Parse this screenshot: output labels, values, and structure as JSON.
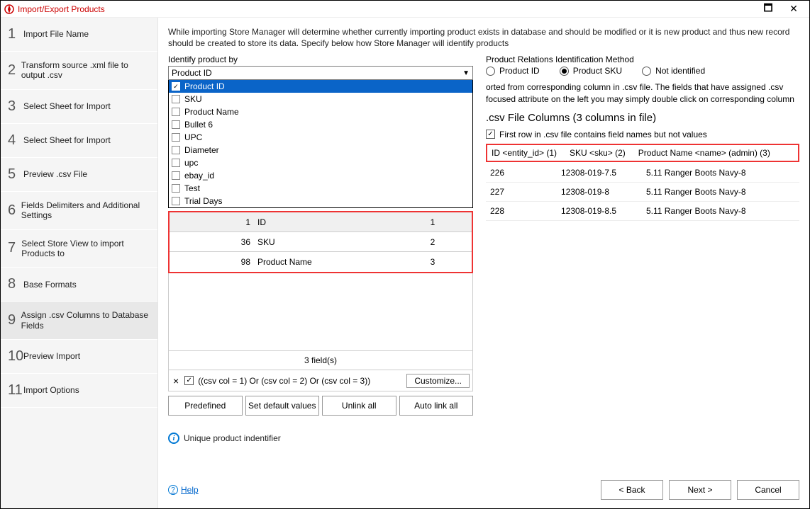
{
  "window": {
    "title": "Import/Export Products"
  },
  "steps": [
    {
      "n": "1",
      "label": "Import File Name"
    },
    {
      "n": "2",
      "label": "Transform source .xml file to output .csv"
    },
    {
      "n": "3",
      "label": "Select Sheet for Import"
    },
    {
      "n": "4",
      "label": "Select Sheet for Import"
    },
    {
      "n": "5",
      "label": "Preview .csv File"
    },
    {
      "n": "6",
      "label": "Fields Delimiters and Additional Settings"
    },
    {
      "n": "7",
      "label": "Select Store View to import Products to"
    },
    {
      "n": "8",
      "label": "Base Formats"
    },
    {
      "n": "9",
      "label": "Assign .csv Columns to Database Fields"
    },
    {
      "n": "10",
      "label": "Preview Import"
    },
    {
      "n": "11",
      "label": "Import Options"
    }
  ],
  "active_step_index": 8,
  "intro": "While importing Store Manager will determine whether currently importing product exists in database and should be modified or it is new product and thus new record should be created to store its data. Specify below how Store Manager will identify products",
  "identify": {
    "label": "Identify product by",
    "selected": "Product ID",
    "options": [
      "Product ID",
      "SKU",
      "Product Name",
      "Bullet 6",
      "UPC",
      "Diameter",
      "upc",
      "ebay_id",
      "Test",
      "Trial Days"
    ],
    "checked_index": 0
  },
  "fields": {
    "rows": [
      {
        "n": "1",
        "name": "ID",
        "col": "1"
      },
      {
        "n": "36",
        "name": "SKU",
        "col": "2"
      },
      {
        "n": "98",
        "name": "Product Name",
        "col": "3"
      }
    ],
    "count_label": "3 field(s)",
    "filter_expr": "((csv col = 1) Or (csv col = 2) Or (csv col = 3))",
    "customize_btn": "Customize..."
  },
  "btns": {
    "predefined": "Predefined",
    "setdef": "Set default values",
    "unlink": "Unlink all",
    "autolink": "Auto link all"
  },
  "info": "Unique product indentifier",
  "relations": {
    "label": "Product Relations Identification Method",
    "options": [
      "Product ID",
      "Product SKU",
      "Not identified"
    ],
    "selected_index": 1
  },
  "right_text": "orted from corresponding column in .csv file. The fields that have assigned .csv focused attribute on the left you may simply double click on corresponding column",
  "csv": {
    "title": ".csv File Columns (3 columns in file)",
    "first_row_label": "First row in .csv file contains field names but not values",
    "headers": [
      "ID <entity_id> (1)",
      "SKU <sku> (2)",
      "Product Name <name> (admin) (3)"
    ],
    "rows": [
      [
        "226",
        "12308-019-7.5",
        "5.11 Ranger Boots Navy-8"
      ],
      [
        "227",
        "12308-019-8",
        "5.11 Ranger Boots Navy-8"
      ],
      [
        "228",
        "12308-019-8.5",
        "5.11 Ranger Boots Navy-8"
      ]
    ]
  },
  "footer": {
    "help": "Help",
    "back": "< Back",
    "next": "Next >",
    "cancel": "Cancel"
  },
  "colors": {
    "highlight": "#e33",
    "select_bg": "#0a64c8",
    "link": "#0066cc"
  }
}
